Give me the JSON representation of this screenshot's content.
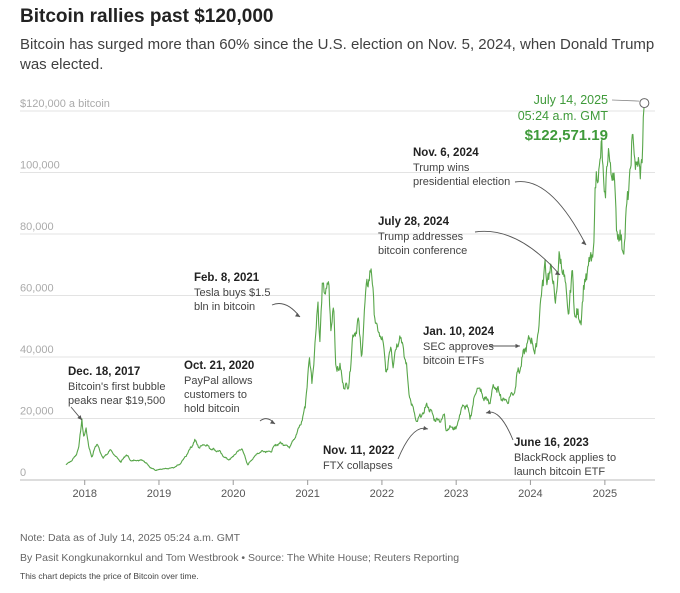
{
  "header": {
    "title": "Bitcoin rallies past $120,000",
    "subtitle": "Bitcoin has surged more than 60% since the U.S. election on Nov. 5, 2024, when Donald Trump was elected."
  },
  "footer": {
    "note": "Note: Data as of July 14, 2025 05:24 a.m. GMT",
    "byline": "By Pasit Kongkunakornkul and Tom Westbrook • Source: The White House; Reuters Reporting",
    "description": "This chart depicts the price of Bitcoin over time."
  },
  "colors": {
    "line": "#58a64a",
    "accent_text": "#3f9a3a",
    "grid": "#e3e3e3",
    "axis": "#bbbbbb"
  },
  "chart_data": {
    "type": "line",
    "title": "Bitcoin rallies past $120,000",
    "ylim": [
      0,
      120000
    ],
    "xlim": [
      "2017-10-01",
      "2025-08-01"
    ],
    "yticks": [
      {
        "value": 0,
        "label": "0"
      },
      {
        "value": 20000,
        "label": "20,000"
      },
      {
        "value": 40000,
        "label": "40,000"
      },
      {
        "value": 60000,
        "label": "60,000"
      },
      {
        "value": 80000,
        "label": "80,000"
      },
      {
        "value": 100000,
        "label": "100,000"
      },
      {
        "value": 120000,
        "label": "$120,000 a bitcoin"
      }
    ],
    "xticks": [
      {
        "date": "2018-01-01",
        "label": "2018"
      },
      {
        "date": "2019-01-01",
        "label": "2019"
      },
      {
        "date": "2020-01-01",
        "label": "2020"
      },
      {
        "date": "2021-01-01",
        "label": "2021"
      },
      {
        "date": "2022-01-01",
        "label": "2022"
      },
      {
        "date": "2023-01-01",
        "label": "2023"
      },
      {
        "date": "2024-01-01",
        "label": "2024"
      },
      {
        "date": "2025-01-01",
        "label": "2025"
      }
    ],
    "series": [
      {
        "points": [
          [
            "2017-10-01",
            5000
          ],
          [
            "2017-11-01",
            6500
          ],
          [
            "2017-11-20",
            8200
          ],
          [
            "2017-12-05",
            11500
          ],
          [
            "2017-12-18",
            19500
          ],
          [
            "2017-12-28",
            14000
          ],
          [
            "2018-01-07",
            16500
          ],
          [
            "2018-01-20",
            11500
          ],
          [
            "2018-02-06",
            7000
          ],
          [
            "2018-02-20",
            11000
          ],
          [
            "2018-03-05",
            11500
          ],
          [
            "2018-04-01",
            7000
          ],
          [
            "2018-05-05",
            9700
          ],
          [
            "2018-06-28",
            5900
          ],
          [
            "2018-07-25",
            8300
          ],
          [
            "2018-08-15",
            6300
          ],
          [
            "2018-10-15",
            6500
          ],
          [
            "2018-11-25",
            3800
          ],
          [
            "2018-12-15",
            3200
          ],
          [
            "2019-01-15",
            3600
          ],
          [
            "2019-02-15",
            3700
          ],
          [
            "2019-03-15",
            4000
          ],
          [
            "2019-04-15",
            5200
          ],
          [
            "2019-05-15",
            8000
          ],
          [
            "2019-06-26",
            12800
          ],
          [
            "2019-07-20",
            10500
          ],
          [
            "2019-08-10",
            11800
          ],
          [
            "2019-09-20",
            10000
          ],
          [
            "2019-10-25",
            9300
          ],
          [
            "2019-11-25",
            7000
          ],
          [
            "2019-12-18",
            6700
          ],
          [
            "2020-01-15",
            8800
          ],
          [
            "2020-02-13",
            10300
          ],
          [
            "2020-03-12",
            4900
          ],
          [
            "2020-04-01",
            6600
          ],
          [
            "2020-05-01",
            8800
          ],
          [
            "2020-06-01",
            9500
          ],
          [
            "2020-07-01",
            9100
          ],
          [
            "2020-08-01",
            11700
          ],
          [
            "2020-09-01",
            11900
          ],
          [
            "2020-10-01",
            10700
          ],
          [
            "2020-10-21",
            12800
          ],
          [
            "2020-11-15",
            16000
          ],
          [
            "2020-12-01",
            19000
          ],
          [
            "2020-12-20",
            23500
          ],
          [
            "2021-01-08",
            40000
          ],
          [
            "2021-01-22",
            32000
          ],
          [
            "2021-02-08",
            46000
          ],
          [
            "2021-02-21",
            57500
          ],
          [
            "2021-03-01",
            45000
          ],
          [
            "2021-03-13",
            61000
          ],
          [
            "2021-04-14",
            63500
          ],
          [
            "2021-04-25",
            49000
          ],
          [
            "2021-05-08",
            58000
          ],
          [
            "2021-05-19",
            37000
          ],
          [
            "2021-06-10",
            36500
          ],
          [
            "2021-06-22",
            31500
          ],
          [
            "2021-07-20",
            29800
          ],
          [
            "2021-08-10",
            45500
          ],
          [
            "2021-09-06",
            52000
          ],
          [
            "2021-09-22",
            40500
          ],
          [
            "2021-10-20",
            65000
          ],
          [
            "2021-11-10",
            67500
          ],
          [
            "2021-12-04",
            49000
          ],
          [
            "2021-12-31",
            46500
          ],
          [
            "2022-01-24",
            35000
          ],
          [
            "2022-02-15",
            44000
          ],
          [
            "2022-02-25",
            38000
          ],
          [
            "2022-03-28",
            47500
          ],
          [
            "2022-04-30",
            38500
          ],
          [
            "2022-05-12",
            29000
          ],
          [
            "2022-06-18",
            19000
          ],
          [
            "2022-07-15",
            21000
          ],
          [
            "2022-08-13",
            24500
          ],
          [
            "2022-09-15",
            20000
          ],
          [
            "2022-10-15",
            19200
          ],
          [
            "2022-11-05",
            21300
          ],
          [
            "2022-11-11",
            16500
          ],
          [
            "2022-12-15",
            17200
          ],
          [
            "2023-01-01",
            16600
          ],
          [
            "2023-01-25",
            23000
          ],
          [
            "2023-02-20",
            24500
          ],
          [
            "2023-03-10",
            20200
          ],
          [
            "2023-04-14",
            30500
          ],
          [
            "2023-05-15",
            27000
          ],
          [
            "2023-06-16",
            25100
          ],
          [
            "2023-07-01",
            30500
          ],
          [
            "2023-07-25",
            29200
          ],
          [
            "2023-08-20",
            26000
          ],
          [
            "2023-09-12",
            25800
          ],
          [
            "2023-10-20",
            29800
          ],
          [
            "2023-10-25",
            34500
          ],
          [
            "2023-11-15",
            37000
          ],
          [
            "2023-12-08",
            43500
          ],
          [
            "2024-01-10",
            46500
          ],
          [
            "2024-01-23",
            39500
          ],
          [
            "2024-02-28",
            62000
          ],
          [
            "2024-03-14",
            73000
          ],
          [
            "2024-03-20",
            62500
          ],
          [
            "2024-04-10",
            70500
          ],
          [
            "2024-05-01",
            57500
          ],
          [
            "2024-05-21",
            71000
          ],
          [
            "2024-06-05",
            71000
          ],
          [
            "2024-07-05",
            54500
          ],
          [
            "2024-07-28",
            68000
          ],
          [
            "2024-08-05",
            53500
          ],
          [
            "2024-09-06",
            53000
          ],
          [
            "2024-09-27",
            66000
          ],
          [
            "2024-10-29",
            72500
          ],
          [
            "2024-11-06",
            75500
          ],
          [
            "2024-11-12",
            89000
          ],
          [
            "2024-11-22",
            99000
          ],
          [
            "2024-12-17",
            106500
          ],
          [
            "2024-12-30",
            92500
          ],
          [
            "2025-01-20",
            106000
          ],
          [
            "2025-02-15",
            97000
          ],
          [
            "2025-02-28",
            84000
          ],
          [
            "2025-03-10",
            78500
          ],
          [
            "2025-04-08",
            76500
          ],
          [
            "2025-04-25",
            94500
          ],
          [
            "2025-05-22",
            111000
          ],
          [
            "2025-06-05",
            101500
          ],
          [
            "2025-06-22",
            100500
          ],
          [
            "2025-07-05",
            108000
          ],
          [
            "2025-07-10",
            116000
          ],
          [
            "2025-07-14",
            122571.19
          ]
        ]
      }
    ],
    "endpoint": {
      "date": "2025-07-14",
      "value": 122571.19,
      "date_label": "July 14, 2025",
      "time_label": "05:24 a.m. GMT",
      "value_label": "$122,571.19"
    },
    "annotations": [
      {
        "date": "2017-12-18",
        "value": 19500,
        "title": "Dec. 18, 2017",
        "lines": [
          "Bitcoin's first bubble",
          "peaks near $19,500"
        ]
      },
      {
        "date": "2020-10-21",
        "value": 12800,
        "title": "Oct. 21, 2020",
        "lines": [
          "PayPal allows",
          "customers to",
          "hold bitcoin"
        ]
      },
      {
        "date": "2021-02-08",
        "value": 46000,
        "title": "Feb. 8, 2021",
        "lines": [
          "Tesla buys $1.5",
          "bln in bitcoin"
        ]
      },
      {
        "date": "2022-11-11",
        "value": 16500,
        "title": "Nov. 11, 2022",
        "lines": [
          "FTX collapses"
        ]
      },
      {
        "date": "2023-06-16",
        "value": 25100,
        "title": "June 16, 2023",
        "lines": [
          "BlackRock applies to",
          "launch bitcoin ETF"
        ]
      },
      {
        "date": "2024-01-10",
        "value": 46500,
        "title": "Jan. 10, 2024",
        "lines": [
          "SEC approves",
          "bitcoin ETFs"
        ]
      },
      {
        "date": "2024-07-28",
        "value": 68000,
        "title": "July 28, 2024",
        "lines": [
          "Trump addresses",
          "bitcoin conference"
        ]
      },
      {
        "date": "2024-11-06",
        "value": 75500,
        "title": "Nov. 6, 2024",
        "lines": [
          "Trump wins",
          "presidential election"
        ]
      }
    ]
  }
}
